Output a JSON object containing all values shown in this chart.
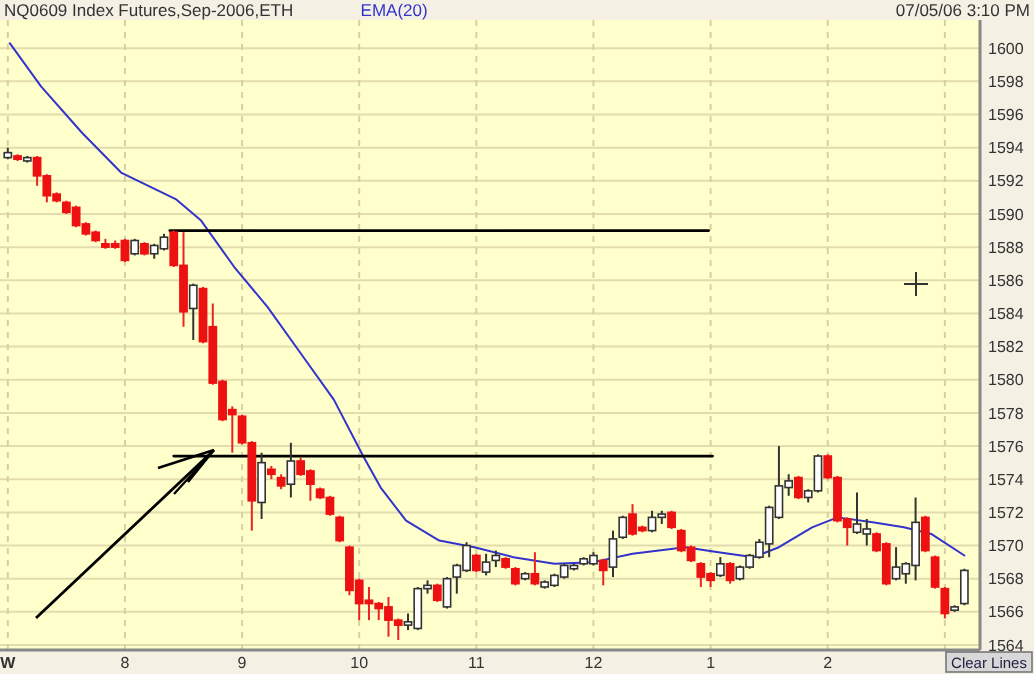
{
  "chart_data": {
    "type": "candlestick",
    "title": "NQ0609 Index Futures,Sep-2006,ETH",
    "legend": "top left",
    "grid": true,
    "xlim": [
      "2006-07-05T06:56",
      "2006-07-05T15:18"
    ],
    "ylim": [
      1563.7,
      1601.7
    ],
    "xticks": [
      {
        "value": "2006-07-05T07:00",
        "label": "W"
      },
      {
        "value": "2006-07-05T08:00",
        "label": "8"
      },
      {
        "value": "2006-07-05T09:00",
        "label": "9"
      },
      {
        "value": "2006-07-05T10:00",
        "label": "10"
      },
      {
        "value": "2006-07-05T11:00",
        "label": "11"
      },
      {
        "value": "2006-07-05T12:00",
        "label": "12"
      },
      {
        "value": "2006-07-05T13:00",
        "label": "1"
      },
      {
        "value": "2006-07-05T14:00",
        "label": "2"
      },
      {
        "value": "2006-07-05T15:00",
        "label": null
      }
    ],
    "yticks": [
      1564,
      1566,
      1568,
      1570,
      1572,
      1574,
      1576,
      1578,
      1580,
      1582,
      1584,
      1586,
      1588,
      1590,
      1592,
      1594,
      1596,
      1598,
      1600
    ],
    "annotations": [
      "07/05/06 3:10 PM",
      "Clear Lines"
    ],
    "series": [
      {
        "x": [
          "2006-07-05T07:00",
          "2006-07-05T07:05",
          "2006-07-05T07:10",
          "2006-07-05T07:15",
          "2006-07-05T07:20",
          "2006-07-05T07:25",
          "2006-07-05T07:30",
          "2006-07-05T07:35",
          "2006-07-05T07:40",
          "2006-07-05T07:45",
          "2006-07-05T07:50",
          "2006-07-05T07:55",
          "2006-07-05T08:00",
          "2006-07-05T08:05",
          "2006-07-05T08:10",
          "2006-07-05T08:15",
          "2006-07-05T08:20",
          "2006-07-05T08:25",
          "2006-07-05T08:30",
          "2006-07-05T08:35",
          "2006-07-05T08:40",
          "2006-07-05T08:45",
          "2006-07-05T08:50",
          "2006-07-05T08:55",
          "2006-07-05T09:00",
          "2006-07-05T09:05",
          "2006-07-05T09:10",
          "2006-07-05T09:15",
          "2006-07-05T09:20",
          "2006-07-05T09:25",
          "2006-07-05T09:30",
          "2006-07-05T09:35",
          "2006-07-05T09:40",
          "2006-07-05T09:45",
          "2006-07-05T09:50",
          "2006-07-05T09:55",
          "2006-07-05T10:00",
          "2006-07-05T10:05",
          "2006-07-05T10:10",
          "2006-07-05T10:15",
          "2006-07-05T10:20",
          "2006-07-05T10:25",
          "2006-07-05T10:30",
          "2006-07-05T10:35",
          "2006-07-05T10:40",
          "2006-07-05T10:45",
          "2006-07-05T10:50",
          "2006-07-05T10:55",
          "2006-07-05T11:00",
          "2006-07-05T11:05",
          "2006-07-05T11:10",
          "2006-07-05T11:15",
          "2006-07-05T11:20",
          "2006-07-05T11:25",
          "2006-07-05T11:30",
          "2006-07-05T11:35",
          "2006-07-05T11:40",
          "2006-07-05T11:45",
          "2006-07-05T11:50",
          "2006-07-05T11:55",
          "2006-07-05T12:00",
          "2006-07-05T12:05",
          "2006-07-05T12:10",
          "2006-07-05T12:15",
          "2006-07-05T12:20",
          "2006-07-05T12:25",
          "2006-07-05T12:30",
          "2006-07-05T12:35",
          "2006-07-05T12:40",
          "2006-07-05T12:45",
          "2006-07-05T12:50",
          "2006-07-05T12:55",
          "2006-07-05T13:00",
          "2006-07-05T13:05",
          "2006-07-05T13:10",
          "2006-07-05T13:15",
          "2006-07-05T13:20",
          "2006-07-05T13:25",
          "2006-07-05T13:30",
          "2006-07-05T13:35",
          "2006-07-05T13:40",
          "2006-07-05T13:45",
          "2006-07-05T13:50",
          "2006-07-05T13:55",
          "2006-07-05T14:00",
          "2006-07-05T14:05",
          "2006-07-05T14:10",
          "2006-07-05T14:15",
          "2006-07-05T14:20",
          "2006-07-05T14:25",
          "2006-07-05T14:30",
          "2006-07-05T14:35",
          "2006-07-05T14:40",
          "2006-07-05T14:45",
          "2006-07-05T14:50",
          "2006-07-05T14:55",
          "2006-07-05T15:00",
          "2006-07-05T15:05",
          "2006-07-05T15:10"
        ],
        "ohlc": [
          [
            1593.4,
            1594.0,
            1593.3,
            1593.7
          ],
          [
            1593.5,
            1593.6,
            1593.2,
            1593.3
          ],
          [
            1593.2,
            1593.5,
            1593.1,
            1593.4
          ],
          [
            1593.4,
            1593.5,
            1591.7,
            1592.3
          ],
          [
            1592.3,
            1592.4,
            1590.7,
            1591.1
          ],
          [
            1591.2,
            1591.3,
            1590.7,
            1590.8
          ],
          [
            1590.7,
            1590.8,
            1590.0,
            1590.1
          ],
          [
            1590.4,
            1590.5,
            1589.2,
            1589.3
          ],
          [
            1589.4,
            1589.5,
            1588.7,
            1588.8
          ],
          [
            1588.9,
            1589.0,
            1588.3,
            1588.4
          ],
          [
            1588.2,
            1588.5,
            1587.9,
            1588.0
          ],
          [
            1588.2,
            1588.4,
            1587.9,
            1588.0
          ],
          [
            1588.4,
            1588.5,
            1587.1,
            1587.2
          ],
          [
            1587.6,
            1588.5,
            1587.5,
            1588.4
          ],
          [
            1588.2,
            1588.3,
            1587.5,
            1587.6
          ],
          [
            1587.6,
            1588.2,
            1587.3,
            1588.1
          ],
          [
            1587.9,
            1588.8,
            1587.8,
            1588.6
          ],
          [
            1588.9,
            1589.0,
            1586.8,
            1586.9
          ],
          [
            1586.9,
            1588.9,
            1583.2,
            1584.1
          ],
          [
            1584.3,
            1585.8,
            1582.4,
            1585.7
          ],
          [
            1585.5,
            1585.6,
            1582.2,
            1582.3
          ],
          [
            1583.2,
            1584.6,
            1579.7,
            1579.8
          ],
          [
            1579.9,
            1580.0,
            1577.5,
            1577.6
          ],
          [
            1578.2,
            1578.4,
            1575.6,
            1577.9
          ],
          [
            1577.8,
            1577.9,
            1576.1,
            1576.2
          ],
          [
            1576.2,
            1576.3,
            1570.9,
            1572.7
          ],
          [
            1572.6,
            1575.6,
            1571.6,
            1575.0
          ],
          [
            1574.6,
            1574.8,
            1574.0,
            1574.3
          ],
          [
            1574.1,
            1574.3,
            1573.4,
            1573.6
          ],
          [
            1573.7,
            1576.2,
            1572.9,
            1575.1
          ],
          [
            1575.1,
            1575.3,
            1574.2,
            1574.3
          ],
          [
            1574.5,
            1574.6,
            1572.7,
            1573.7
          ],
          [
            1573.4,
            1573.5,
            1572.8,
            1572.9
          ],
          [
            1572.9,
            1573.0,
            1571.8,
            1571.9
          ],
          [
            1571.7,
            1571.8,
            1570.2,
            1570.3
          ],
          [
            1569.9,
            1570.0,
            1567.0,
            1567.3
          ],
          [
            1567.9,
            1568.0,
            1565.5,
            1566.5
          ],
          [
            1566.7,
            1567.5,
            1565.5,
            1566.5
          ],
          [
            1566.5,
            1566.6,
            1565.5,
            1566.2
          ],
          [
            1566.3,
            1566.9,
            1564.5,
            1565.5
          ],
          [
            1565.5,
            1565.6,
            1564.3,
            1565.2
          ],
          [
            1565.2,
            1565.9,
            1564.9,
            1565.4
          ],
          [
            1565.0,
            1567.5,
            1564.9,
            1567.4
          ],
          [
            1567.4,
            1567.9,
            1567.1,
            1567.6
          ],
          [
            1567.6,
            1567.7,
            1566.6,
            1566.7
          ],
          [
            1566.3,
            1568.1,
            1566.2,
            1568.0
          ],
          [
            1568.1,
            1568.9,
            1567.1,
            1568.8
          ],
          [
            1568.5,
            1570.2,
            1568.4,
            1570.0
          ],
          [
            1569.4,
            1569.5,
            1568.4,
            1568.5
          ],
          [
            1568.4,
            1569.5,
            1568.2,
            1569.0
          ],
          [
            1569.1,
            1569.7,
            1568.7,
            1569.4
          ],
          [
            1569.2,
            1569.3,
            1568.6,
            1568.7
          ],
          [
            1568.6,
            1568.7,
            1567.6,
            1567.7
          ],
          [
            1568.0,
            1568.4,
            1567.9,
            1568.3
          ],
          [
            1568.3,
            1569.6,
            1567.6,
            1567.7
          ],
          [
            1567.5,
            1567.9,
            1567.4,
            1567.8
          ],
          [
            1567.6,
            1568.3,
            1567.5,
            1568.2
          ],
          [
            1568.1,
            1568.9,
            1568.0,
            1568.8
          ],
          [
            1568.6,
            1568.9,
            1568.5,
            1568.8
          ],
          [
            1568.9,
            1569.3,
            1568.8,
            1569.2
          ],
          [
            1568.9,
            1569.6,
            1568.8,
            1569.4
          ],
          [
            1569.1,
            1569.2,
            1567.6,
            1568.5
          ],
          [
            1568.7,
            1570.9,
            1568.1,
            1570.4
          ],
          [
            1570.5,
            1571.8,
            1570.4,
            1571.7
          ],
          [
            1571.9,
            1572.5,
            1570.6,
            1570.7
          ],
          [
            1571.1,
            1571.2,
            1570.8,
            1570.9
          ],
          [
            1570.9,
            1572.1,
            1570.8,
            1571.7
          ],
          [
            1571.7,
            1572.1,
            1571.3,
            1571.9
          ],
          [
            1572.0,
            1572.1,
            1571.0,
            1571.1
          ],
          [
            1570.9,
            1571.0,
            1569.6,
            1569.7
          ],
          [
            1569.9,
            1570.0,
            1569.0,
            1569.1
          ],
          [
            1568.9,
            1569.0,
            1567.5,
            1568.1
          ],
          [
            1568.3,
            1568.4,
            1567.5,
            1567.9
          ],
          [
            1568.2,
            1569.3,
            1568.1,
            1568.9
          ],
          [
            1568.9,
            1569.0,
            1567.7,
            1567.9
          ],
          [
            1568.0,
            1568.8,
            1567.9,
            1568.7
          ],
          [
            1568.7,
            1569.5,
            1568.6,
            1569.4
          ],
          [
            1569.3,
            1570.4,
            1569.2,
            1570.2
          ],
          [
            1570.1,
            1572.4,
            1569.3,
            1572.3
          ],
          [
            1571.7,
            1576.0,
            1571.6,
            1573.6
          ],
          [
            1573.5,
            1574.3,
            1573.0,
            1573.9
          ],
          [
            1574.1,
            1574.2,
            1572.8,
            1572.9
          ],
          [
            1572.9,
            1573.4,
            1572.6,
            1573.3
          ],
          [
            1573.3,
            1575.5,
            1573.2,
            1575.4
          ],
          [
            1575.4,
            1575.5,
            1574.0,
            1574.1
          ],
          [
            1574.1,
            1574.2,
            1571.4,
            1571.5
          ],
          [
            1571.6,
            1571.7,
            1570.0,
            1571.1
          ],
          [
            1570.8,
            1573.2,
            1570.7,
            1571.3
          ],
          [
            1570.7,
            1571.6,
            1570.0,
            1571.0
          ],
          [
            1570.7,
            1570.8,
            1569.6,
            1569.7
          ],
          [
            1570.1,
            1570.2,
            1567.6,
            1567.7
          ],
          [
            1568.0,
            1569.9,
            1567.9,
            1568.7
          ],
          [
            1568.3,
            1569.0,
            1567.7,
            1568.9
          ],
          [
            1568.8,
            1572.9,
            1567.9,
            1571.4
          ],
          [
            1571.7,
            1571.8,
            1569.6,
            1569.7
          ],
          [
            1569.3,
            1569.4,
            1567.4,
            1567.5
          ],
          [
            1567.4,
            1567.5,
            1565.6,
            1565.9
          ],
          [
            1566.1,
            1566.4,
            1566.0,
            1566.3
          ],
          [
            1566.5,
            1568.6,
            1566.4,
            1568.5
          ]
        ]
      },
      {
        "type": "line",
        "name": "EMA(20)",
        "color": "#3333cc",
        "x": [
          "2006-07-05T07:01",
          "2006-07-05T07:17",
          "2006-07-05T07:38",
          "2006-07-05T07:58",
          "2006-07-05T08:26",
          "2006-07-05T08:39",
          "2006-07-05T08:56",
          "2006-07-05T09:13",
          "2006-07-05T09:30",
          "2006-07-05T09:47",
          "2006-07-05T10:02",
          "2006-07-05T10:11",
          "2006-07-05T10:24",
          "2006-07-05T10:41",
          "2006-07-05T10:59",
          "2006-07-05T11:19",
          "2006-07-05T11:40",
          "2006-07-05T12:00",
          "2006-07-05T12:20",
          "2006-07-05T12:47",
          "2006-07-05T13:04",
          "2006-07-05T13:22",
          "2006-07-05T13:35",
          "2006-07-05T13:52",
          "2006-07-05T14:05",
          "2006-07-05T14:23",
          "2006-07-05T14:39",
          "2006-07-05T14:53",
          "2006-07-05T15:10"
        ],
        "values": [
          1600.3,
          1597.7,
          1594.9,
          1592.5,
          1590.9,
          1589.6,
          1586.8,
          1584.4,
          1581.6,
          1578.8,
          1575.4,
          1573.5,
          1571.5,
          1570.3,
          1569.9,
          1569.3,
          1568.9,
          1569.0,
          1569.5,
          1569.9,
          1569.6,
          1569.3,
          1569.9,
          1571.1,
          1571.7,
          1571.4,
          1571.1,
          1570.7,
          1569.4
        ]
      },
      {
        "type": "line",
        "color": "#000000",
        "x": [
          "2006-07-05T08:23",
          "2006-07-05T12:59"
        ],
        "values": [
          1589.0,
          1589.0
        ]
      },
      {
        "type": "line",
        "color": "#000000",
        "x": [
          "2006-07-05T08:25",
          "2006-07-05T13:01"
        ],
        "values": [
          1575.4,
          1575.4
        ]
      }
    ]
  }
}
